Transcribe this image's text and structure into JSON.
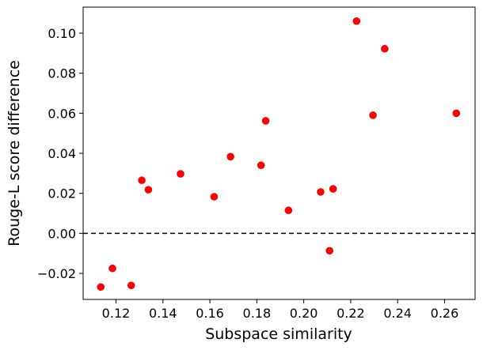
{
  "chart_data": {
    "type": "scatter",
    "title": "",
    "xlabel": "Subspace similarity",
    "ylabel": "Rouge-L score difference",
    "xlim": [
      0.106,
      0.273
    ],
    "ylim": [
      -0.033,
      0.113
    ],
    "x_ticks": [
      0.12,
      0.14,
      0.16,
      0.18,
      0.2,
      0.22,
      0.24,
      0.26
    ],
    "x_tick_labels": [
      "0.12",
      "0.14",
      "0.16",
      "0.18",
      "0.20",
      "0.22",
      "0.24",
      "0.26"
    ],
    "y_ticks": [
      -0.02,
      0.0,
      0.02,
      0.04,
      0.06,
      0.08,
      0.1
    ],
    "y_tick_labels": [
      "−0.02",
      "0.00",
      "0.02",
      "0.04",
      "0.06",
      "0.08",
      "0.10"
    ],
    "grid": false,
    "reference_line": {
      "y": 0.0,
      "style": "dashed",
      "color": "#000000"
    },
    "marker_color": "#ff0000",
    "points": [
      {
        "x": 0.1135,
        "y": -0.0268
      },
      {
        "x": 0.1185,
        "y": -0.0175
      },
      {
        "x": 0.1265,
        "y": -0.026
      },
      {
        "x": 0.131,
        "y": 0.0265
      },
      {
        "x": 0.1338,
        "y": 0.0218
      },
      {
        "x": 0.1475,
        "y": 0.0297
      },
      {
        "x": 0.1618,
        "y": 0.0183
      },
      {
        "x": 0.1688,
        "y": 0.0383
      },
      {
        "x": 0.1818,
        "y": 0.034
      },
      {
        "x": 0.1838,
        "y": 0.0562
      },
      {
        "x": 0.1935,
        "y": 0.0115
      },
      {
        "x": 0.2072,
        "y": 0.0207
      },
      {
        "x": 0.211,
        "y": -0.0087
      },
      {
        "x": 0.2125,
        "y": 0.0222
      },
      {
        "x": 0.2225,
        "y": 0.106
      },
      {
        "x": 0.2295,
        "y": 0.059
      },
      {
        "x": 0.2345,
        "y": 0.0922
      },
      {
        "x": 0.265,
        "y": 0.06
      }
    ]
  }
}
